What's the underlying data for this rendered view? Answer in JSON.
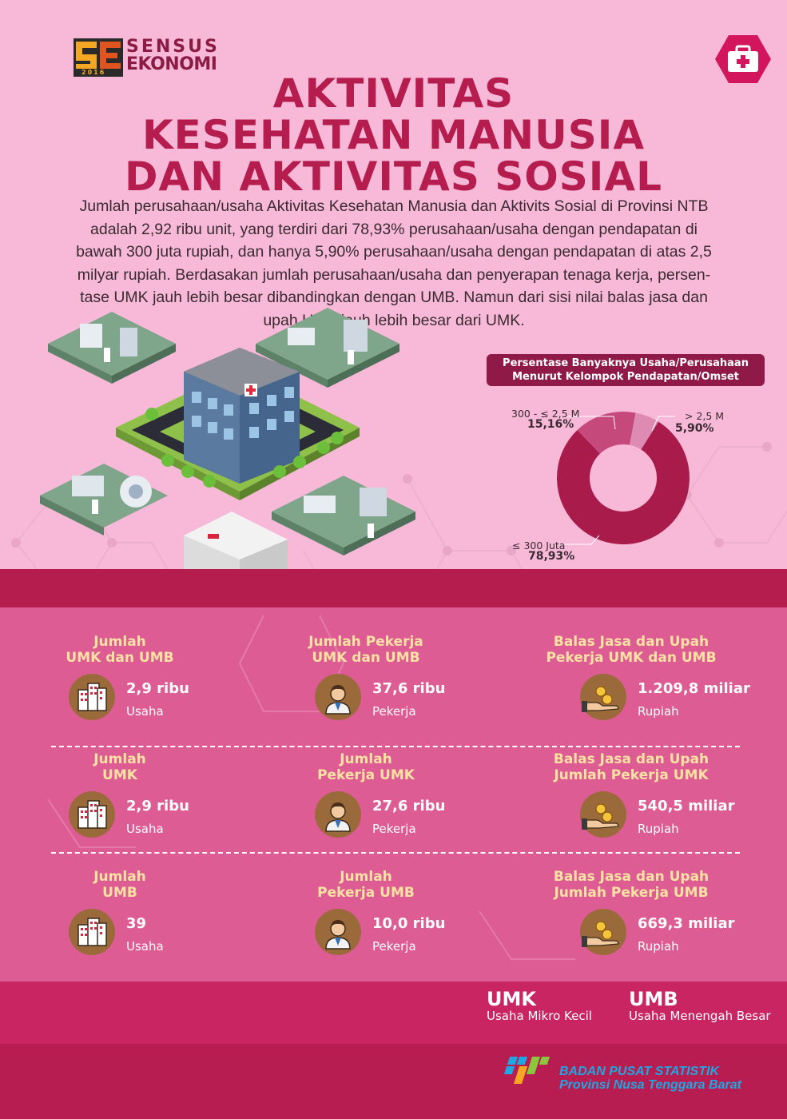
{
  "logo": {
    "line1": "SENSUS",
    "line2": "EKONOMI",
    "year": "2016"
  },
  "badge": {
    "icon": "first-aid-kit-icon"
  },
  "title": {
    "line1": "AKTIVITAS",
    "line2": "KESEHATAN MANUSIA",
    "line3": "DAN AKTIVITAS SOSIAL"
  },
  "intro": {
    "lines": [
      "Jumlah perusahaan/usaha Aktivitas Kesehatan Manusia dan Aktivits Sosial di Provinsi NTB",
      "adalah 2,92 ribu unit, yang terdiri dari 78,93% perusahaan/usaha dengan pendapatan di",
      "bawah 300 juta rupiah, dan hanya 5,90% perusahaan/usaha  dengan pendapatan di atas 2,5",
      "milyar rupiah. Berdasakan  jumlah perusahaan/usaha dan penyerapan tenaga kerja, persen-",
      "tase UMK jauh lebih besar dibandingkan dengan UMB. Namun dari sisi nilai balas jasa dan",
      "upah UMB jauh lebih besar dari UMK."
    ]
  },
  "chart_data": {
    "type": "pie",
    "title": "Persentase Banyaknya Usaha/Perusahaan Menurut Kelompok Pendapatan/Omset",
    "title_line1": "Persentase Banyaknya Usaha/Perusahaan",
    "title_line2": "Menurut Kelompok Pendapatan/Omset",
    "donut": true,
    "categories": [
      "≤ 300 Juta",
      "300 - ≤ 2,5 M",
      "> 2,5 M"
    ],
    "values": [
      78.93,
      15.16,
      5.9
    ],
    "value_labels": [
      "78,93%",
      "15,16%",
      "5,90%"
    ],
    "colors": [
      "#a91b4b",
      "#c6497b",
      "#dd8bb3"
    ]
  },
  "stats": {
    "rows": [
      [
        {
          "head1": "Jumlah",
          "head2": "UMK dan UMB",
          "value": "2,9 ribu",
          "unit": "Usaha",
          "icon": "building-icon"
        },
        {
          "head1": "Jumlah Pekerja",
          "head2": "UMK dan UMB",
          "value": "37,6 ribu",
          "unit": "Pekerja",
          "icon": "worker-icon"
        },
        {
          "head1": "Balas Jasa dan Upah",
          "head2": "Pekerja UMK dan UMB",
          "value": "1.209,8 miliar",
          "unit": "Rupiah",
          "icon": "coins-hand-icon"
        }
      ],
      [
        {
          "head1": "Jumlah",
          "head2": "UMK",
          "value": "2,9 ribu",
          "unit": "Usaha",
          "icon": "building-icon"
        },
        {
          "head1": "Jumlah",
          "head2": "Pekerja UMK",
          "value": "27,6 ribu",
          "unit": "Pekerja",
          "icon": "worker-icon"
        },
        {
          "head1": "Balas Jasa dan Upah",
          "head2": "Jumlah Pekerja UMK",
          "value": "540,5 miliar",
          "unit": "Rupiah",
          "icon": "coins-hand-icon"
        }
      ],
      [
        {
          "head1": "Jumlah",
          "head2": "UMB",
          "value": "39",
          "unit": "Usaha",
          "icon": "building-icon"
        },
        {
          "head1": "Jumlah",
          "head2": "Pekerja UMB",
          "value": "10,0 ribu",
          "unit": "Pekerja",
          "icon": "worker-icon"
        },
        {
          "head1": "Balas Jasa dan Upah",
          "head2": "Jumlah Pekerja UMB",
          "value": "669,3 miliar",
          "unit": "Rupiah",
          "icon": "coins-hand-icon"
        }
      ]
    ]
  },
  "legend": {
    "umk_abbr": "UMK",
    "umk_full": "Usaha Mikro Kecil",
    "umb_abbr": "UMB",
    "umb_full": "Usaha Menengah Besar"
  },
  "footer": {
    "org_line1": "BADAN PUSAT STATISTIK",
    "org_line2": "Provinsi Nusa Tenggara Barat"
  },
  "colors": {
    "background": "#f7b9d7",
    "title": "#b51d4e",
    "band": "#b51d4e",
    "stats_bg": "#dd5c93",
    "stat_heading": "#fde2a3",
    "icon_circle": "#9b6a3b",
    "bps_blue": "#1ea7e1"
  }
}
